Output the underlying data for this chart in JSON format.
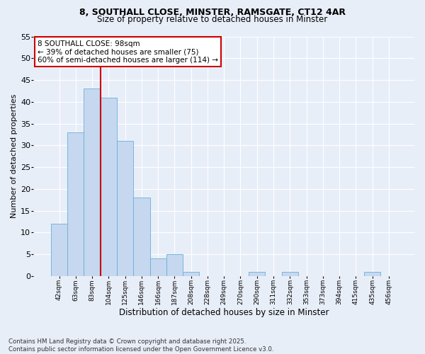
{
  "title1": "8, SOUTHALL CLOSE, MINSTER, RAMSGATE, CT12 4AR",
  "title2": "Size of property relative to detached houses in Minster",
  "xlabel": "Distribution of detached houses by size in Minster",
  "ylabel": "Number of detached properties",
  "categories": [
    "42sqm",
    "63sqm",
    "83sqm",
    "104sqm",
    "125sqm",
    "146sqm",
    "166sqm",
    "187sqm",
    "208sqm",
    "228sqm",
    "249sqm",
    "270sqm",
    "290sqm",
    "311sqm",
    "332sqm",
    "353sqm",
    "373sqm",
    "394sqm",
    "415sqm",
    "435sqm",
    "456sqm"
  ],
  "values": [
    12,
    33,
    43,
    41,
    31,
    18,
    4,
    5,
    1,
    0,
    0,
    0,
    1,
    0,
    1,
    0,
    0,
    0,
    0,
    1,
    0
  ],
  "bar_color": "#c5d8f0",
  "bar_edge_color": "#6baed6",
  "vline_x": 2.5,
  "vline_color": "#cc0000",
  "annotation_text": "8 SOUTHALL CLOSE: 98sqm\n← 39% of detached houses are smaller (75)\n60% of semi-detached houses are larger (114) →",
  "annotation_box_color": "#ffffff",
  "annotation_box_edge": "#cc0000",
  "ylim": [
    0,
    55
  ],
  "yticks": [
    0,
    5,
    10,
    15,
    20,
    25,
    30,
    35,
    40,
    45,
    50,
    55
  ],
  "footer": "Contains HM Land Registry data © Crown copyright and database right 2025.\nContains public sector information licensed under the Open Government Licence v3.0.",
  "bg_color": "#e8eef8",
  "plot_bg_color": "#e8eef8",
  "grid_color": "#ffffff"
}
